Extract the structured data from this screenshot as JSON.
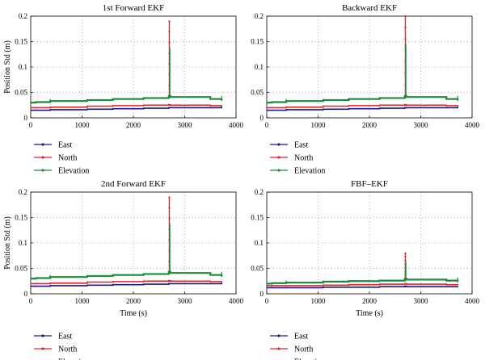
{
  "chart_data": [
    {
      "type": "line",
      "title": "1st Forward EKF",
      "ylabel": "Position Std (m)",
      "xlabel": "",
      "xlim": [
        0,
        4000
      ],
      "ylim": [
        0,
        0.2
      ],
      "xticks": [
        "0",
        "1000",
        "2000",
        "3000",
        "4000"
      ],
      "yticks": [
        "0",
        "0.05",
        "0.1",
        "0.15",
        "0.2"
      ],
      "grid": true,
      "legend_position": "below",
      "spike": {
        "x": 2700,
        "peak": 0.19
      },
      "series": [
        {
          "name": "East",
          "color": "#1a1a8c",
          "x": [
            0,
            100,
            380,
            1100,
            1600,
            2200,
            2690,
            2720,
            3500,
            3720
          ],
          "y": [
            0.015,
            0.015,
            0.016,
            0.017,
            0.018,
            0.019,
            0.02,
            0.02,
            0.02,
            0.021
          ]
        },
        {
          "name": "North",
          "color": "#e8202a",
          "x": [
            0,
            100,
            380,
            1100,
            1600,
            2200,
            2690,
            2720,
            3500,
            3720
          ],
          "y": [
            0.02,
            0.02,
            0.021,
            0.023,
            0.024,
            0.025,
            0.026,
            0.025,
            0.024,
            0.024
          ]
        },
        {
          "name": "Elevation",
          "color": "#1a8c3c",
          "x": [
            0,
            100,
            380,
            1100,
            1600,
            2200,
            2690,
            2720,
            3500,
            3720
          ],
          "y": [
            0.03,
            0.031,
            0.033,
            0.035,
            0.037,
            0.039,
            0.043,
            0.041,
            0.037,
            0.035
          ]
        }
      ]
    },
    {
      "type": "line",
      "title": "Backward EKF",
      "ylabel": "",
      "xlabel": "",
      "xlim": [
        0,
        4000
      ],
      "ylim": [
        0,
        0.2
      ],
      "xticks": [
        "0",
        "1000",
        "2000",
        "3000",
        "4000"
      ],
      "yticks": [
        "0",
        "0.05",
        "0.1",
        "0.15",
        "0.2"
      ],
      "grid": true,
      "legend_position": "below",
      "spike": {
        "x": 2700,
        "peak": 0.2
      },
      "series": [
        {
          "name": "East",
          "color": "#1a1a8c",
          "x": [
            0,
            100,
            380,
            1100,
            1600,
            2200,
            2690,
            2720,
            3500,
            3720
          ],
          "y": [
            0.015,
            0.015,
            0.016,
            0.017,
            0.018,
            0.019,
            0.02,
            0.02,
            0.02,
            0.021
          ]
        },
        {
          "name": "North",
          "color": "#e8202a",
          "x": [
            0,
            100,
            380,
            1100,
            1600,
            2200,
            2690,
            2720,
            3500,
            3720
          ],
          "y": [
            0.02,
            0.02,
            0.021,
            0.023,
            0.024,
            0.025,
            0.026,
            0.025,
            0.024,
            0.024
          ]
        },
        {
          "name": "Elevation",
          "color": "#1a8c3c",
          "x": [
            0,
            100,
            380,
            1100,
            1600,
            2200,
            2690,
            2720,
            3500,
            3720
          ],
          "y": [
            0.03,
            0.031,
            0.033,
            0.035,
            0.037,
            0.039,
            0.043,
            0.041,
            0.037,
            0.035
          ]
        }
      ]
    },
    {
      "type": "line",
      "title": "2nd Forward EKF",
      "ylabel": "Position Std (m)",
      "xlabel": "Time (s)",
      "xlim": [
        0,
        4000
      ],
      "ylim": [
        0,
        0.2
      ],
      "xticks": [
        "0",
        "1000",
        "2000",
        "3000",
        "4000"
      ],
      "yticks": [
        "0",
        "0.05",
        "0.1",
        "0.15",
        "0.2"
      ],
      "grid": true,
      "legend_position": "below",
      "spike": {
        "x": 2700,
        "peak": 0.19
      },
      "series": [
        {
          "name": "East",
          "color": "#1a1a8c",
          "x": [
            0,
            100,
            380,
            1100,
            1600,
            2200,
            2690,
            2720,
            3500,
            3720
          ],
          "y": [
            0.015,
            0.015,
            0.016,
            0.017,
            0.018,
            0.019,
            0.02,
            0.02,
            0.02,
            0.021
          ]
        },
        {
          "name": "North",
          "color": "#e8202a",
          "x": [
            0,
            100,
            380,
            1100,
            1600,
            2200,
            2690,
            2720,
            3500,
            3720
          ],
          "y": [
            0.02,
            0.02,
            0.021,
            0.023,
            0.024,
            0.025,
            0.026,
            0.025,
            0.024,
            0.024
          ]
        },
        {
          "name": "Elevation",
          "color": "#1a8c3c",
          "x": [
            0,
            100,
            380,
            1100,
            1600,
            2200,
            2690,
            2720,
            3500,
            3720
          ],
          "y": [
            0.03,
            0.031,
            0.033,
            0.035,
            0.037,
            0.039,
            0.043,
            0.041,
            0.037,
            0.035
          ]
        }
      ]
    },
    {
      "type": "line",
      "title": "FBF–EKF",
      "ylabel": "",
      "xlabel": "Time (s)",
      "xlim": [
        0,
        4000
      ],
      "ylim": [
        0,
        0.2
      ],
      "xticks": [
        "0",
        "1000",
        "2000",
        "3000",
        "4000"
      ],
      "yticks": [
        "0",
        "0.05",
        "0.1",
        "0.15",
        "0.2"
      ],
      "grid": true,
      "legend_position": "below",
      "spike": {
        "x": 2700,
        "peak": 0.08
      },
      "series": [
        {
          "name": "East",
          "color": "#1a1a8c",
          "x": [
            0,
            100,
            380,
            1100,
            1600,
            2200,
            2690,
            2720,
            3500,
            3720
          ],
          "y": [
            0.012,
            0.012,
            0.012,
            0.013,
            0.013,
            0.014,
            0.015,
            0.014,
            0.014,
            0.014
          ]
        },
        {
          "name": "North",
          "color": "#e8202a",
          "x": [
            0,
            100,
            380,
            1100,
            1600,
            2200,
            2690,
            2720,
            3500,
            3720
          ],
          "y": [
            0.016,
            0.016,
            0.016,
            0.017,
            0.018,
            0.019,
            0.02,
            0.019,
            0.018,
            0.018
          ]
        },
        {
          "name": "Elevation",
          "color": "#1a8c3c",
          "x": [
            0,
            100,
            380,
            1100,
            1600,
            2200,
            2690,
            2720,
            3500,
            3720
          ],
          "y": [
            0.02,
            0.021,
            0.022,
            0.024,
            0.025,
            0.026,
            0.03,
            0.028,
            0.026,
            0.025
          ]
        }
      ]
    }
  ]
}
